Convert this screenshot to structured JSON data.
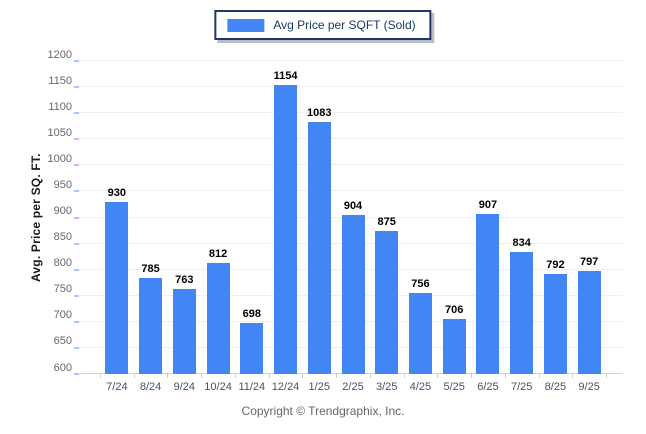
{
  "chart_data": {
    "type": "bar",
    "legend_label": "Avg Price per SQFT (Sold)",
    "legend_position": "top-center",
    "ylabel": "Avg. Price per SQ. FT.",
    "xlabel": "",
    "categories": [
      "7/24",
      "8/24",
      "9/24",
      "10/24",
      "11/24",
      "12/24",
      "1/25",
      "2/25",
      "3/25",
      "4/25",
      "5/25",
      "6/25",
      "7/25",
      "8/25",
      "9/25"
    ],
    "values": [
      930,
      785,
      763,
      812,
      698,
      1154,
      1083,
      904,
      875,
      756,
      706,
      907,
      834,
      792,
      797
    ],
    "ylim": [
      600,
      1200
    ],
    "ytick_step": 50,
    "grid": true,
    "colors": {
      "bar": "#4285F4",
      "grid": "#EFEFEF",
      "axis_line": "#D4D4D4",
      "x_axis_tick": "#CFCFCF",
      "y_axis_tick": "#A7CBF8",
      "value_label": "#000000",
      "x_tick_label": "#44546A",
      "y_tick_label": "#66666E",
      "legend_border": "#1F3864",
      "legend_text": "#17375E"
    }
  },
  "footer": {
    "text": "Copyright © Trendgraphix, Inc."
  }
}
